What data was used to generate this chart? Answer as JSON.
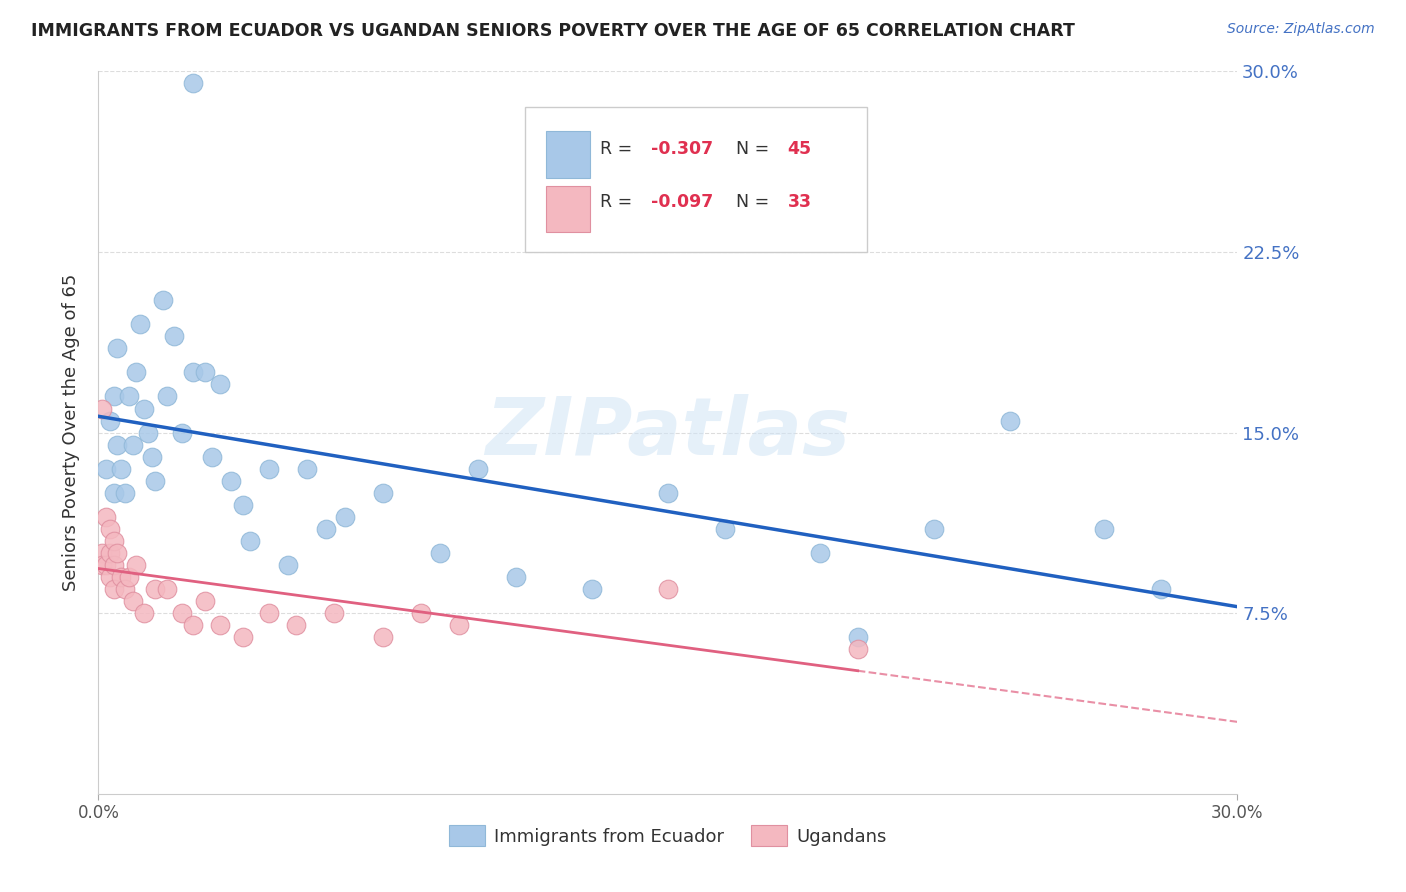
{
  "title": "IMMIGRANTS FROM ECUADOR VS UGANDAN SENIORS POVERTY OVER THE AGE OF 65 CORRELATION CHART",
  "source": "Source: ZipAtlas.com",
  "ylabel": "Seniors Poverty Over the Age of 65",
  "xmin": 0.0,
  "xmax": 0.3,
  "ymin": 0.0,
  "ymax": 0.3,
  "yticks": [
    0.075,
    0.15,
    0.225,
    0.3
  ],
  "ytick_labels": [
    "7.5%",
    "15.0%",
    "22.5%",
    "30.0%"
  ],
  "legend_r1": "R = -0.307",
  "legend_n1": "N = 45",
  "legend_r2": "R = -0.097",
  "legend_n2": "N = 33",
  "blue_color": "#a8c8e8",
  "pink_color": "#f4b8c0",
  "line_blue": "#2060c0",
  "line_pink": "#e06080",
  "watermark": "ZIPatlas",
  "legend_labels": [
    "Immigrants from Ecuador",
    "Ugandans"
  ],
  "ecuador_x": [
    0.002,
    0.003,
    0.004,
    0.004,
    0.005,
    0.005,
    0.006,
    0.007,
    0.008,
    0.009,
    0.01,
    0.011,
    0.012,
    0.013,
    0.014,
    0.015,
    0.017,
    0.018,
    0.02,
    0.022,
    0.025,
    0.028,
    0.03,
    0.032,
    0.035,
    0.038,
    0.04,
    0.045,
    0.05,
    0.055,
    0.06,
    0.065,
    0.075,
    0.09,
    0.1,
    0.11,
    0.13,
    0.15,
    0.165,
    0.19,
    0.2,
    0.22,
    0.24,
    0.265,
    0.28
  ],
  "ecuador_y": [
    0.135,
    0.155,
    0.125,
    0.165,
    0.145,
    0.185,
    0.135,
    0.125,
    0.165,
    0.145,
    0.175,
    0.195,
    0.16,
    0.15,
    0.14,
    0.13,
    0.205,
    0.165,
    0.19,
    0.15,
    0.175,
    0.175,
    0.14,
    0.17,
    0.13,
    0.12,
    0.105,
    0.135,
    0.095,
    0.135,
    0.11,
    0.115,
    0.125,
    0.1,
    0.135,
    0.09,
    0.085,
    0.125,
    0.11,
    0.1,
    0.065,
    0.11,
    0.155,
    0.11,
    0.085
  ],
  "uganda_x": [
    0.001,
    0.001,
    0.001,
    0.002,
    0.002,
    0.003,
    0.003,
    0.003,
    0.004,
    0.004,
    0.004,
    0.005,
    0.006,
    0.007,
    0.008,
    0.009,
    0.01,
    0.012,
    0.015,
    0.018,
    0.022,
    0.025,
    0.028,
    0.032,
    0.038,
    0.045,
    0.052,
    0.062,
    0.075,
    0.085,
    0.095,
    0.15,
    0.2
  ],
  "uganda_y": [
    0.16,
    0.1,
    0.095,
    0.115,
    0.095,
    0.11,
    0.09,
    0.1,
    0.105,
    0.085,
    0.095,
    0.1,
    0.09,
    0.085,
    0.09,
    0.08,
    0.095,
    0.075,
    0.085,
    0.085,
    0.075,
    0.07,
    0.08,
    0.07,
    0.065,
    0.075,
    0.07,
    0.075,
    0.065,
    0.075,
    0.07,
    0.085,
    0.06
  ],
  "ecuador_outlier_x": [
    0.025
  ],
  "ecuador_outlier_y": [
    0.295
  ],
  "background_color": "#ffffff",
  "grid_color": "#dddddd"
}
